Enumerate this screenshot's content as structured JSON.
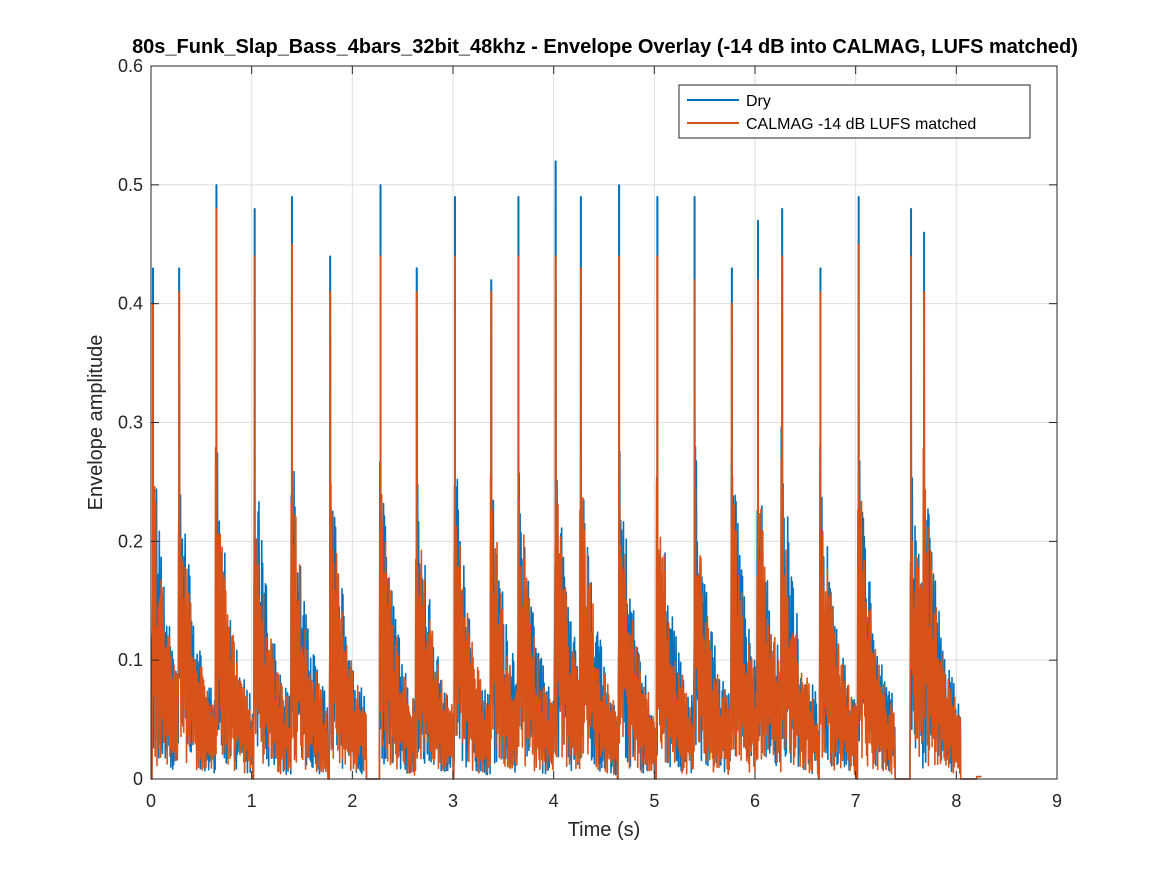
{
  "chart_data": {
    "type": "line",
    "title": "80s_Funk_Slap_Bass_4bars_32bit_48khz - Envelope Overlay (-14 dB into CALMAG, LUFS matched)",
    "xlabel": "Time (s)",
    "ylabel": "Envelope amplitude",
    "xlim": [
      0,
      9
    ],
    "ylim": [
      0,
      0.6
    ],
    "xticks": [
      "0",
      "1",
      "2",
      "3",
      "4",
      "5",
      "6",
      "7",
      "8",
      "9"
    ],
    "yticks": [
      "0",
      "0.1",
      "0.2",
      "0.3",
      "0.4",
      "0.5",
      "0.6"
    ],
    "grid": true,
    "legend_position": "top-right",
    "signal_end_time": 8.2,
    "series": [
      {
        "name": "Dry",
        "color": "#0072BD",
        "peaks": [
          {
            "t": 0.02,
            "v": 0.43
          },
          {
            "t": 0.28,
            "v": 0.43
          },
          {
            "t": 0.65,
            "v": 0.5
          },
          {
            "t": 1.03,
            "v": 0.48
          },
          {
            "t": 1.4,
            "v": 0.49
          },
          {
            "t": 1.78,
            "v": 0.44
          },
          {
            "t": 2.28,
            "v": 0.5
          },
          {
            "t": 2.64,
            "v": 0.43
          },
          {
            "t": 3.02,
            "v": 0.49
          },
          {
            "t": 3.38,
            "v": 0.42
          },
          {
            "t": 3.65,
            "v": 0.49
          },
          {
            "t": 4.02,
            "v": 0.52
          },
          {
            "t": 4.27,
            "v": 0.49
          },
          {
            "t": 4.65,
            "v": 0.5
          },
          {
            "t": 5.03,
            "v": 0.49
          },
          {
            "t": 5.4,
            "v": 0.49
          },
          {
            "t": 5.77,
            "v": 0.43
          },
          {
            "t": 6.03,
            "v": 0.47
          },
          {
            "t": 6.27,
            "v": 0.48
          },
          {
            "t": 6.65,
            "v": 0.43
          },
          {
            "t": 7.03,
            "v": 0.49
          },
          {
            "t": 7.55,
            "v": 0.48
          },
          {
            "t": 7.68,
            "v": 0.46
          }
        ]
      },
      {
        "name": "CALMAG -14 dB LUFS matched",
        "color": "#D95319",
        "peaks": [
          {
            "t": 0.02,
            "v": 0.4
          },
          {
            "t": 0.28,
            "v": 0.41
          },
          {
            "t": 0.65,
            "v": 0.48
          },
          {
            "t": 1.03,
            "v": 0.44
          },
          {
            "t": 1.4,
            "v": 0.45
          },
          {
            "t": 1.78,
            "v": 0.41
          },
          {
            "t": 2.28,
            "v": 0.44
          },
          {
            "t": 2.64,
            "v": 0.41
          },
          {
            "t": 3.02,
            "v": 0.44
          },
          {
            "t": 3.38,
            "v": 0.41
          },
          {
            "t": 3.65,
            "v": 0.44
          },
          {
            "t": 4.02,
            "v": 0.44
          },
          {
            "t": 4.27,
            "v": 0.43
          },
          {
            "t": 4.65,
            "v": 0.44
          },
          {
            "t": 5.03,
            "v": 0.44
          },
          {
            "t": 5.4,
            "v": 0.42
          },
          {
            "t": 5.77,
            "v": 0.4
          },
          {
            "t": 6.03,
            "v": 0.42
          },
          {
            "t": 6.27,
            "v": 0.44
          },
          {
            "t": 6.65,
            "v": 0.41
          },
          {
            "t": 7.03,
            "v": 0.45
          },
          {
            "t": 7.55,
            "v": 0.44
          },
          {
            "t": 7.68,
            "v": 0.41
          }
        ]
      }
    ]
  }
}
